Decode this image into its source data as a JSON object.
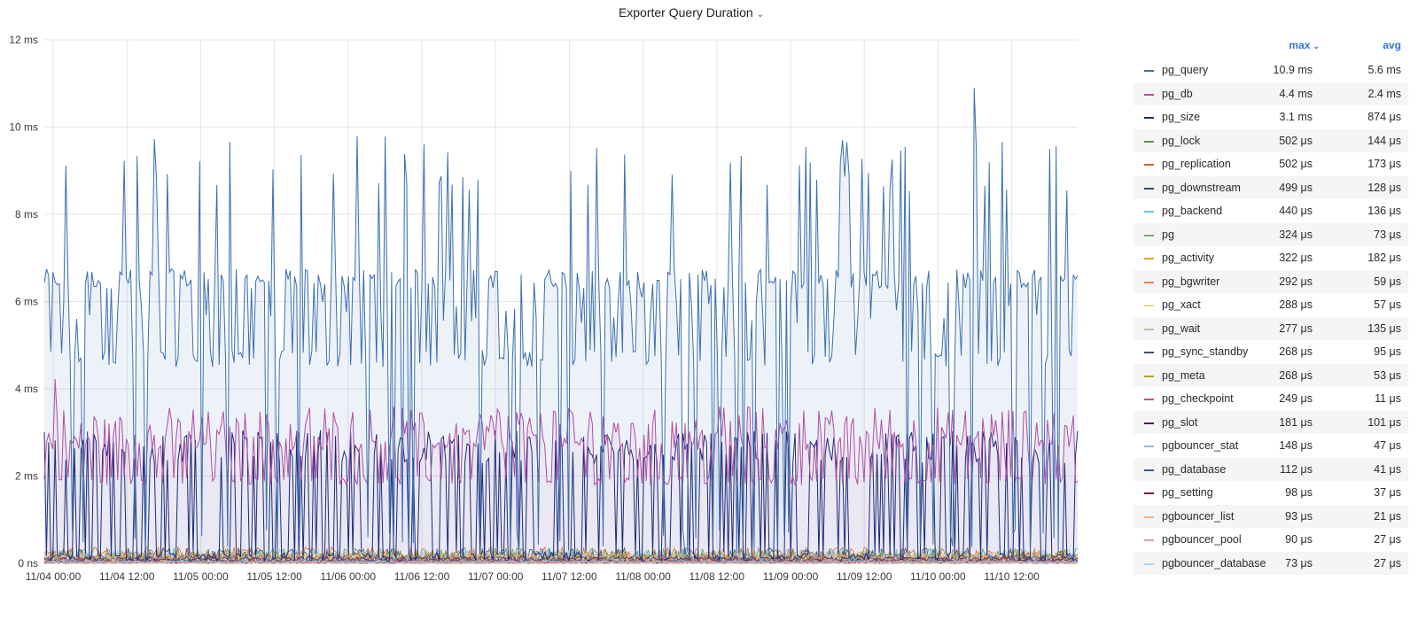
{
  "panel": {
    "title": "Exporter Query Duration",
    "title_chevron": "chevron-down-icon"
  },
  "legend": {
    "headers": {
      "max": "max",
      "avg": "avg"
    },
    "sort_icon": "chevron-down-icon",
    "link_color": "#3274d9",
    "items": [
      {
        "name": "pg_query",
        "max": "10.9 ms",
        "avg": "5.6 ms",
        "color": "#3a6fb0"
      },
      {
        "name": "pg_db",
        "max": "4.4 ms",
        "avg": "2.4 ms",
        "color": "#b04ea5"
      },
      {
        "name": "pg_size",
        "max": "3.1 ms",
        "avg": "874 μs",
        "color": "#1c2a78"
      },
      {
        "name": "pg_lock",
        "max": "502 μs",
        "avg": "144 μs",
        "color": "#4c9a3f"
      },
      {
        "name": "pg_replication",
        "max": "502 μs",
        "avg": "173 μs",
        "color": "#d4662a"
      },
      {
        "name": "pg_downstream",
        "max": "499 μs",
        "avg": "128 μs",
        "color": "#2e4b6e"
      },
      {
        "name": "pg_backend",
        "max": "440 μs",
        "avg": "136 μs",
        "color": "#75c3e6"
      },
      {
        "name": "pg",
        "max": "324 μs",
        "avg": "73 μs",
        "color": "#7da87b"
      },
      {
        "name": "pg_activity",
        "max": "322 μs",
        "avg": "182 μs",
        "color": "#e4a32d"
      },
      {
        "name": "pg_bgwriter",
        "max": "292 μs",
        "avg": "59 μs",
        "color": "#e8825a"
      },
      {
        "name": "pg_xact",
        "max": "288 μs",
        "avg": "57 μs",
        "color": "#e8d98c"
      },
      {
        "name": "pg_wait",
        "max": "277 μs",
        "avg": "135 μs",
        "color": "#c9b8a8"
      },
      {
        "name": "pg_sync_standby",
        "max": "268 μs",
        "avg": "95 μs",
        "color": "#3d4f6b"
      },
      {
        "name": "pg_meta",
        "max": "268 μs",
        "avg": "53 μs",
        "color": "#c49a2c"
      },
      {
        "name": "pg_checkpoint",
        "max": "249 μs",
        "avg": "11 μs",
        "color": "#c0566e"
      },
      {
        "name": "pg_slot",
        "max": "181 μs",
        "avg": "101 μs",
        "color": "#5a1a5c"
      },
      {
        "name": "pgbouncer_stat",
        "max": "148 μs",
        "avg": "47 μs",
        "color": "#8fb7e0"
      },
      {
        "name": "pg_database",
        "max": "112 μs",
        "avg": "41 μs",
        "color": "#2f5a9e"
      },
      {
        "name": "pg_setting",
        "max": "98 μs",
        "avg": "37 μs",
        "color": "#7a1632"
      },
      {
        "name": "pgbouncer_list",
        "max": "93 μs",
        "avg": "21 μs",
        "color": "#f0b48a"
      },
      {
        "name": "pgbouncer_pool",
        "max": "90 μs",
        "avg": "27 μs",
        "color": "#e59aa8"
      },
      {
        "name": "pgbouncer_database",
        "max": "73 μs",
        "avg": "27 μs",
        "color": "#a9d8ee"
      }
    ]
  },
  "chart_data": {
    "type": "line",
    "title": "Exporter Query Duration",
    "y_unit": "ms",
    "ylim": [
      0,
      12
    ],
    "y_ticks": [
      "0 ns",
      "2 ms",
      "4 ms",
      "6 ms",
      "8 ms",
      "10 ms",
      "12 ms"
    ],
    "x_ticks": [
      "11/04 00:00",
      "11/04 12:00",
      "11/05 00:00",
      "11/05 12:00",
      "11/06 00:00",
      "11/06 12:00",
      "11/07 00:00",
      "11/07 12:00",
      "11/08 00:00",
      "11/08 12:00",
      "11/09 00:00",
      "11/09 12:00",
      "11/10 00:00",
      "11/10 12:00"
    ],
    "grid": true,
    "legend_position": "right",
    "series_summary": [
      {
        "name": "pg_query",
        "max": 10.9,
        "avg": 5.6
      },
      {
        "name": "pg_db",
        "max": 4.4,
        "avg": 2.4
      },
      {
        "name": "pg_size",
        "max": 3.1,
        "avg": 0.874
      },
      {
        "name": "pg_lock",
        "max": 0.502,
        "avg": 0.144
      },
      {
        "name": "pg_replication",
        "max": 0.502,
        "avg": 0.173
      },
      {
        "name": "pg_downstream",
        "max": 0.499,
        "avg": 0.128
      },
      {
        "name": "pg_backend",
        "max": 0.44,
        "avg": 0.136
      },
      {
        "name": "pg",
        "max": 0.324,
        "avg": 0.073
      },
      {
        "name": "pg_activity",
        "max": 0.322,
        "avg": 0.182
      },
      {
        "name": "pg_bgwriter",
        "max": 0.292,
        "avg": 0.059
      },
      {
        "name": "pg_xact",
        "max": 0.288,
        "avg": 0.057
      },
      {
        "name": "pg_wait",
        "max": 0.277,
        "avg": 0.135
      },
      {
        "name": "pg_sync_standby",
        "max": 0.268,
        "avg": 0.095
      },
      {
        "name": "pg_meta",
        "max": 0.268,
        "avg": 0.053
      },
      {
        "name": "pg_checkpoint",
        "max": 0.249,
        "avg": 0.011
      },
      {
        "name": "pg_slot",
        "max": 0.181,
        "avg": 0.101
      },
      {
        "name": "pgbouncer_stat",
        "max": 0.148,
        "avg": 0.047
      },
      {
        "name": "pg_database",
        "max": 0.112,
        "avg": 0.041
      },
      {
        "name": "pg_setting",
        "max": 0.098,
        "avg": 0.037
      },
      {
        "name": "pgbouncer_list",
        "max": 0.093,
        "avg": 0.021
      },
      {
        "name": "pgbouncer_pool",
        "max": 0.09,
        "avg": 0.027
      },
      {
        "name": "pgbouncer_database",
        "max": 0.073,
        "avg": 0.027
      }
    ]
  }
}
